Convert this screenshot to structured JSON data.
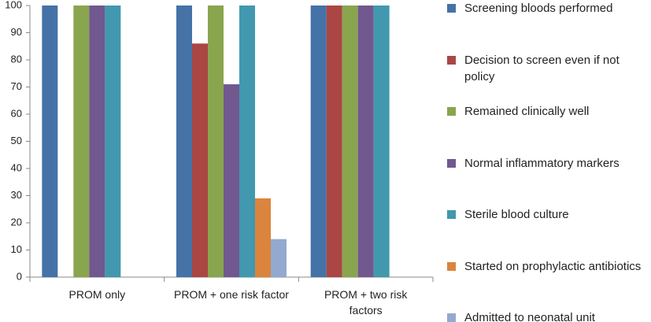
{
  "chart_data": {
    "type": "bar",
    "categories": [
      "PROM only",
      "PROM + one risk factor",
      "PROM + two risk factors"
    ],
    "series": [
      {
        "name": "Screening bloods performed",
        "color": "#4572a7",
        "values": [
          100,
          100,
          100
        ]
      },
      {
        "name": "Decision to screen even if not policy",
        "color": "#aa4643",
        "values": [
          0,
          86,
          100
        ]
      },
      {
        "name": "Remained clinically well",
        "color": "#89a54e",
        "values": [
          100,
          100,
          100
        ]
      },
      {
        "name": "Normal inflammatory markers",
        "color": "#71588f",
        "values": [
          100,
          71,
          100
        ]
      },
      {
        "name": "Sterile blood culture",
        "color": "#4198af",
        "values": [
          100,
          100,
          100
        ]
      },
      {
        "name": "Started on prophylactic antibiotics",
        "color": "#db843d",
        "values": [
          0,
          29,
          0
        ]
      },
      {
        "name": "Admitted to neonatal unit",
        "color": "#93a9cf",
        "values": [
          0,
          14,
          0
        ]
      }
    ],
    "ylim": [
      0,
      100
    ],
    "yticks": [
      0,
      10,
      20,
      30,
      40,
      50,
      60,
      70,
      80,
      90,
      100
    ],
    "grid": false,
    "legend": "right"
  }
}
